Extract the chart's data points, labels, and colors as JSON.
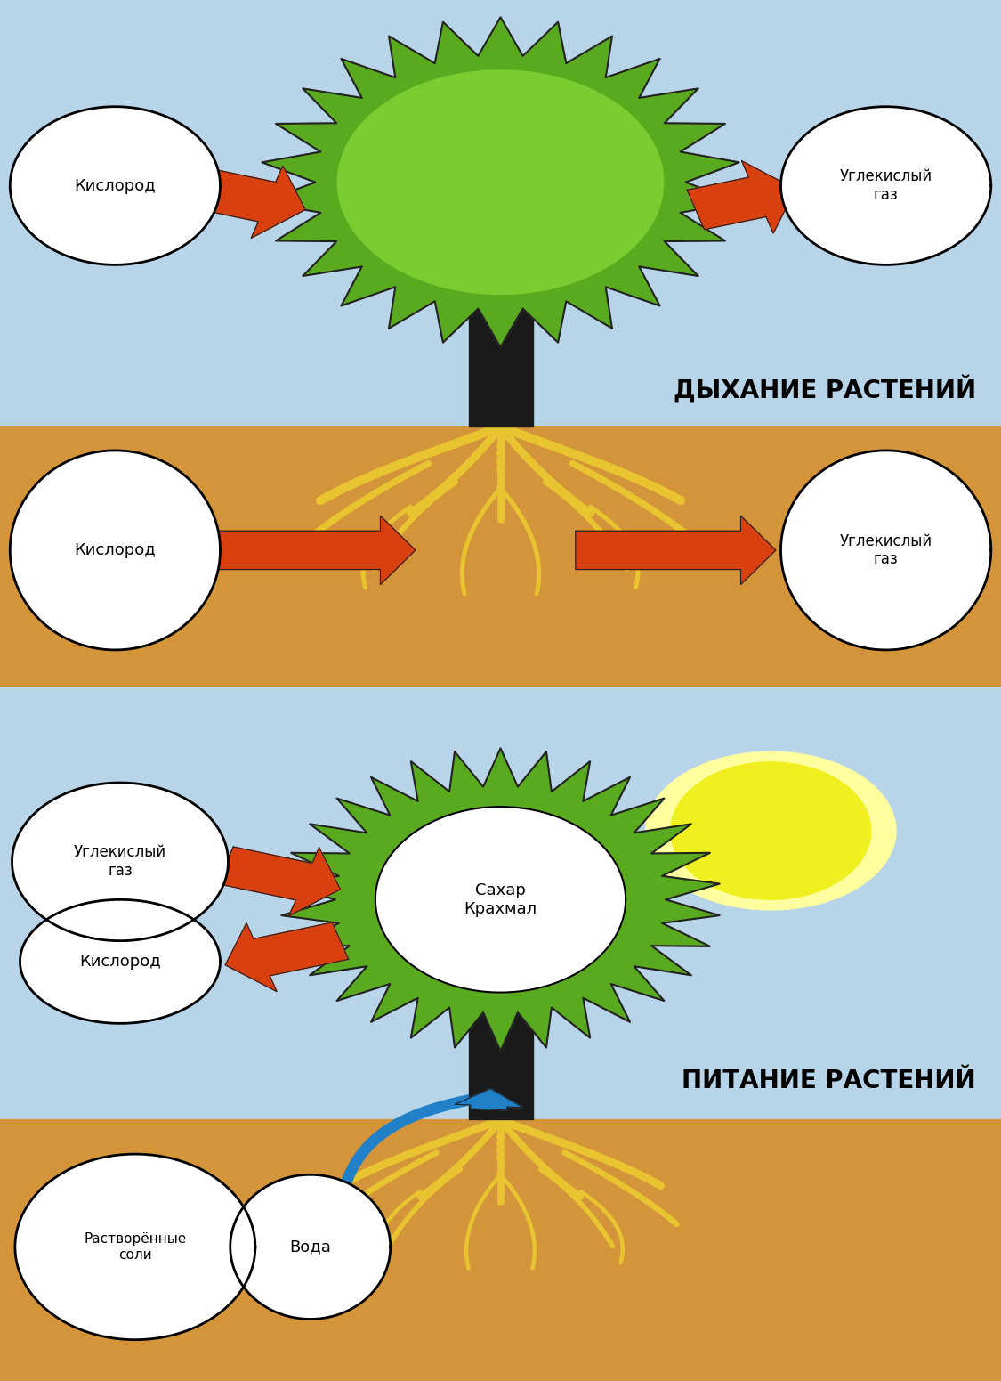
{
  "panel1_title": "ДЫХАНИЕ РАСТЕНИЙ",
  "panel2_title": "ПИТАНИЕ РАСТЕНИЙ",
  "sky_color": "#b8d4e8",
  "ground_color": "#d4943a",
  "tree_crown_dark": "#5aaa20",
  "tree_crown_light": "#7acc30",
  "tree_trunk_color": "#1a1a1a",
  "root_color": "#e8c430",
  "arrow_color": "#d84010",
  "circle_fill": "#ffffff",
  "circle_edge": "#111111",
  "sun_outer": "#ffffa0",
  "sun_inner": "#f0f020",
  "water_arrow_color": "#2080c8",
  "label_kislород1": "Кислород",
  "label_uglek1": "Углекислый\nгаз",
  "label_kislород_ground": "Кислород",
  "label_uglek_ground": "Углекислый\nгаз",
  "label_uglek2": "Углекислый\nгаз",
  "label_kislorod2": "Кислород",
  "label_center2": "Сахар\nКрахмал",
  "label_soli": "Растворённые\nсоли",
  "label_voda": "Вода",
  "title_fontsize": 20,
  "label_fontsize": 13
}
